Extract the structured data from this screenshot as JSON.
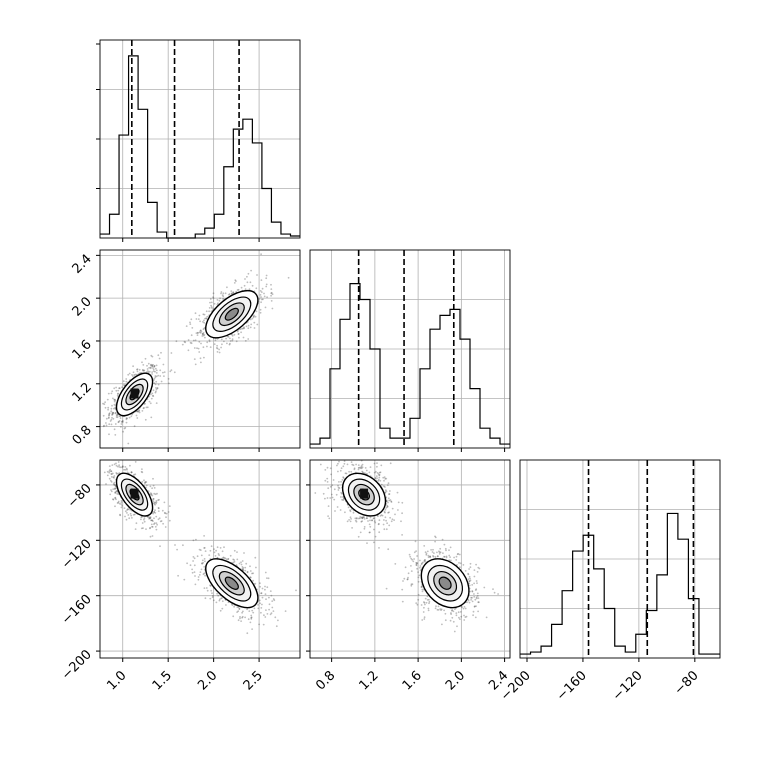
{
  "chart_data": {
    "type": "corner",
    "params": [
      {
        "name": "",
        "range": [
          0.75,
          2.95
        ],
        "quantiles": [
          1.1,
          1.57,
          2.28
        ],
        "ticks": [
          1.0,
          1.5,
          2.0,
          2.5
        ],
        "tick_labels": [
          "1.0",
          "1.5",
          "2.0",
          "2.5"
        ],
        "hist": [
          0.02,
          0.12,
          0.52,
          0.92,
          0.65,
          0.18,
          0.03,
          0.0,
          0.0,
          0.0,
          0.02,
          0.05,
          0.12,
          0.36,
          0.55,
          0.6,
          0.48,
          0.25,
          0.08,
          0.02,
          0.01
        ]
      },
      {
        "name": "",
        "range": [
          0.6,
          2.45
        ],
        "quantiles": [
          1.05,
          1.47,
          1.93
        ],
        "ticks": [
          0.8,
          1.2,
          1.6,
          2.0,
          2.4
        ],
        "tick_labels": [
          "0.8",
          "1.2",
          "1.6",
          "2.0",
          "2.4"
        ],
        "hist": [
          0.02,
          0.05,
          0.4,
          0.65,
          0.83,
          0.75,
          0.5,
          0.1,
          0.05,
          0.05,
          0.15,
          0.4,
          0.6,
          0.67,
          0.7,
          0.55,
          0.3,
          0.1,
          0.05,
          0.02
        ]
      },
      {
        "name": "",
        "range": [
          -205,
          -62
        ],
        "quantiles": [
          -156,
          -114,
          -81
        ],
        "ticks": [
          -200,
          -160,
          -120,
          -80
        ],
        "tick_labels": [
          "−200",
          "−160",
          "−120",
          "−80"
        ],
        "hist": [
          0.02,
          0.03,
          0.06,
          0.17,
          0.34,
          0.54,
          0.62,
          0.45,
          0.25,
          0.06,
          0.03,
          0.12,
          0.24,
          0.42,
          0.73,
          0.6,
          0.3,
          0.02,
          0.02
        ]
      }
    ],
    "yticks_row2": {
      "ticks": [
        0.8,
        1.2,
        1.6,
        2.0,
        2.4
      ],
      "tick_labels": [
        "0.8",
        "1.2",
        "1.6",
        "2.0",
        "2.4"
      ]
    },
    "yticks_row3": {
      "ticks": [
        -80,
        -120,
        -160,
        -200
      ],
      "tick_labels": [
        "−80",
        "−120",
        "−160",
        "−200"
      ]
    },
    "clusters": [
      {
        "mean": [
          1.13,
          1.1,
          -87
        ],
        "sd": [
          0.09,
          0.09,
          7
        ]
      },
      {
        "mean": [
          2.2,
          1.85,
          -151
        ],
        "sd": [
          0.13,
          0.1,
          8
        ]
      }
    ],
    "correlations": {
      "p01": 0.6,
      "p02": -0.6,
      "p12": -0.3
    },
    "grid": true,
    "colors": {
      "line": "#000000",
      "points": "#444444",
      "grid": "#b0b0b0"
    }
  }
}
